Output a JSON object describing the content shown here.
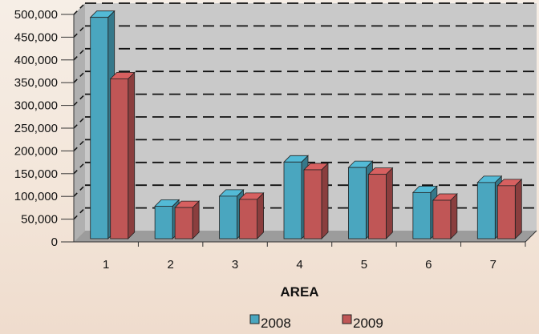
{
  "chart_data": {
    "type": "bar",
    "categories": [
      "1",
      "2",
      "3",
      "4",
      "5",
      "6",
      "7"
    ],
    "series": [
      {
        "name": "2008",
        "values": [
          490000,
          75000,
          97000,
          172000,
          160000,
          105000,
          127000
        ],
        "color": "#4aa6bf"
      },
      {
        "name": "2009",
        "values": [
          355000,
          72000,
          90000,
          155000,
          145000,
          88000,
          120000
        ],
        "color": "#c05656"
      }
    ],
    "xlabel": "AREA",
    "ylabel": "",
    "ylim": [
      0,
      500000
    ],
    "yticks": [
      "0",
      "50,000",
      "100,000",
      "150,000",
      "200,000",
      "250,000",
      "300,000",
      "350,000",
      "400,000",
      "450,000",
      "500,000"
    ],
    "grid": true,
    "legend": "bottom"
  }
}
